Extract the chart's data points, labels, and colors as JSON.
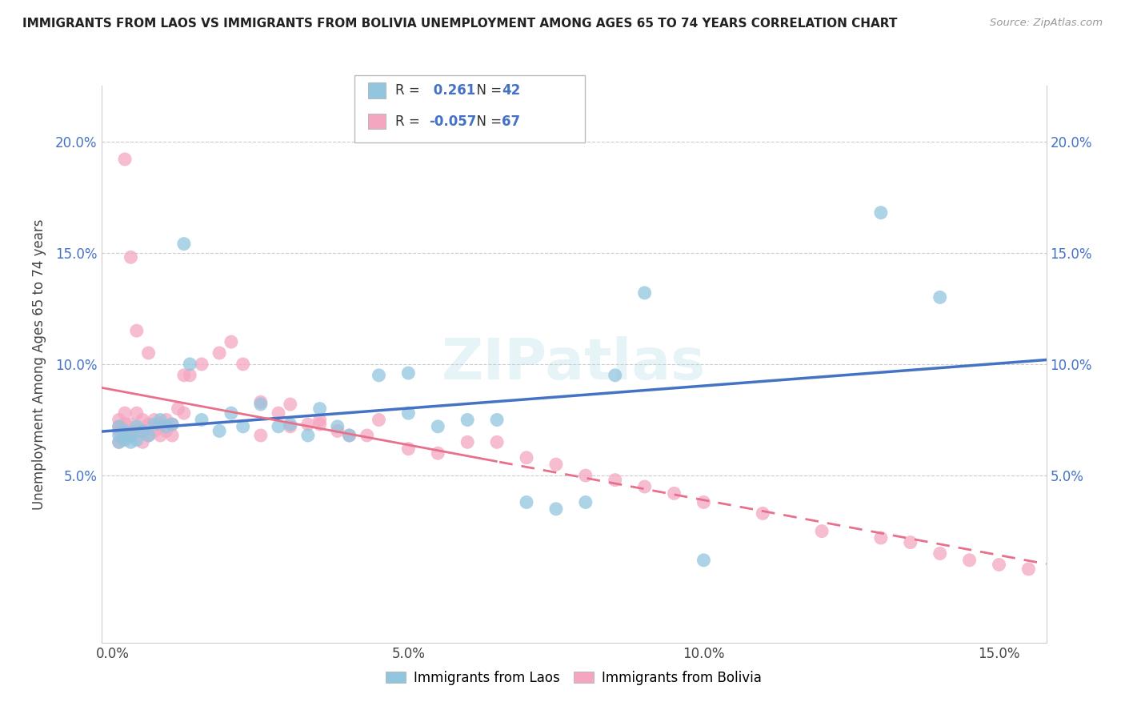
{
  "title": "IMMIGRANTS FROM LAOS VS IMMIGRANTS FROM BOLIVIA UNEMPLOYMENT AMONG AGES 65 TO 74 YEARS CORRELATION CHART",
  "source": "Source: ZipAtlas.com",
  "ylabel": "Unemployment Among Ages 65 to 74 years",
  "x_tick_labels": [
    "0.0%",
    "5.0%",
    "10.0%",
    "15.0%"
  ],
  "x_tick_vals": [
    0.0,
    0.05,
    0.1,
    0.15
  ],
  "y_tick_labels": [
    "5.0%",
    "10.0%",
    "15.0%",
    "20.0%"
  ],
  "y_tick_vals": [
    0.05,
    0.1,
    0.15,
    0.2
  ],
  "xlim": [
    -0.002,
    0.158
  ],
  "ylim": [
    -0.025,
    0.225
  ],
  "legend_labels": [
    "Immigrants from Laos",
    "Immigrants from Bolivia"
  ],
  "R_laos": 0.261,
  "N_laos": 42,
  "R_bolivia": -0.057,
  "N_bolivia": 67,
  "laos_color": "#92C5DE",
  "bolivia_color": "#F4A6C0",
  "laos_line_color": "#4472C4",
  "bolivia_line_color": "#E8708A",
  "background_color": "#FFFFFF",
  "grid_color": "#CCCCCC",
  "laos_x": [
    0.001,
    0.001,
    0.001,
    0.002,
    0.002,
    0.003,
    0.003,
    0.004,
    0.004,
    0.005,
    0.006,
    0.007,
    0.008,
    0.009,
    0.01,
    0.012,
    0.013,
    0.015,
    0.018,
    0.02,
    0.022,
    0.025,
    0.028,
    0.03,
    0.033,
    0.035,
    0.038,
    0.04,
    0.045,
    0.05,
    0.055,
    0.06,
    0.07,
    0.075,
    0.08,
    0.085,
    0.09,
    0.1,
    0.13,
    0.14,
    0.05,
    0.065
  ],
  "laos_y": [
    0.065,
    0.068,
    0.072,
    0.066,
    0.07,
    0.065,
    0.068,
    0.066,
    0.072,
    0.07,
    0.068,
    0.073,
    0.075,
    0.072,
    0.073,
    0.154,
    0.1,
    0.075,
    0.07,
    0.078,
    0.072,
    0.082,
    0.072,
    0.073,
    0.068,
    0.08,
    0.072,
    0.068,
    0.095,
    0.078,
    0.072,
    0.075,
    0.038,
    0.035,
    0.038,
    0.095,
    0.132,
    0.012,
    0.168,
    0.13,
    0.096,
    0.075
  ],
  "bolivia_x": [
    0.001,
    0.001,
    0.001,
    0.001,
    0.002,
    0.002,
    0.002,
    0.003,
    0.003,
    0.004,
    0.004,
    0.005,
    0.005,
    0.005,
    0.006,
    0.006,
    0.007,
    0.007,
    0.008,
    0.008,
    0.009,
    0.009,
    0.01,
    0.01,
    0.011,
    0.012,
    0.012,
    0.013,
    0.015,
    0.018,
    0.02,
    0.022,
    0.025,
    0.028,
    0.03,
    0.033,
    0.035,
    0.038,
    0.04,
    0.043,
    0.045,
    0.05,
    0.055,
    0.06,
    0.065,
    0.07,
    0.075,
    0.08,
    0.085,
    0.09,
    0.095,
    0.1,
    0.11,
    0.12,
    0.13,
    0.135,
    0.14,
    0.145,
    0.15,
    0.155,
    0.025,
    0.03,
    0.035,
    0.002,
    0.003,
    0.004,
    0.006
  ],
  "bolivia_y": [
    0.065,
    0.07,
    0.072,
    0.075,
    0.068,
    0.073,
    0.078,
    0.068,
    0.073,
    0.07,
    0.078,
    0.065,
    0.07,
    0.075,
    0.068,
    0.073,
    0.07,
    0.075,
    0.068,
    0.073,
    0.07,
    0.075,
    0.068,
    0.073,
    0.08,
    0.078,
    0.095,
    0.095,
    0.1,
    0.105,
    0.11,
    0.1,
    0.083,
    0.078,
    0.082,
    0.073,
    0.073,
    0.07,
    0.068,
    0.068,
    0.075,
    0.062,
    0.06,
    0.065,
    0.065,
    0.058,
    0.055,
    0.05,
    0.048,
    0.045,
    0.042,
    0.038,
    0.033,
    0.025,
    0.022,
    0.02,
    0.015,
    0.012,
    0.01,
    0.008,
    0.068,
    0.072,
    0.075,
    0.192,
    0.148,
    0.115,
    0.105
  ]
}
